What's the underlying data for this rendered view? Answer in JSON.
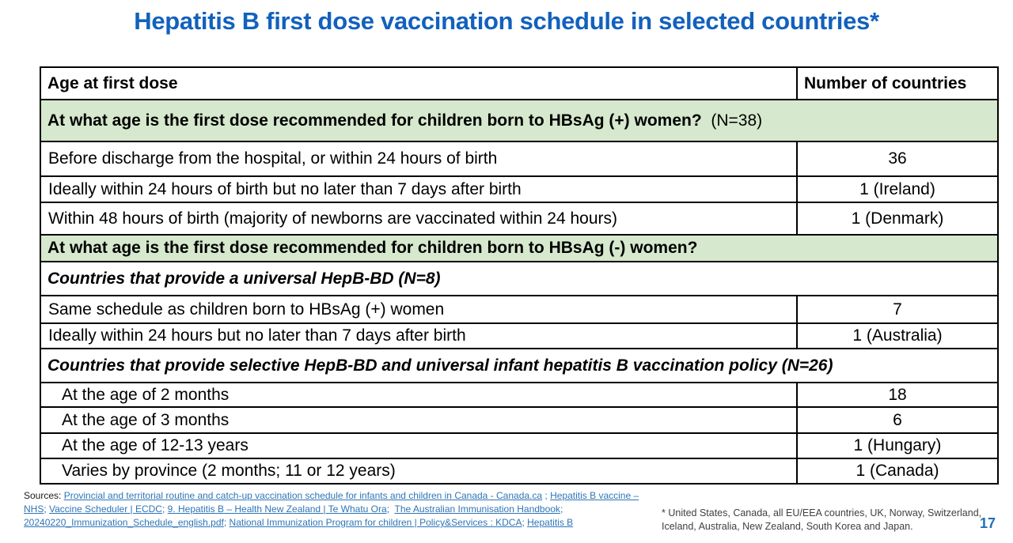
{
  "title": "Hepatitis B first dose vaccination schedule in selected countries*",
  "page_number": "17",
  "colors": {
    "title_blue": "#1261bd",
    "section_green": "#d6e8cd",
    "link_blue": "#2e75b6",
    "footnote_gray": "#404040",
    "page_number_blue": "#2271b8",
    "table_border": "#000000"
  },
  "table": {
    "headers": [
      "Age at first dose",
      "Number of countries"
    ],
    "rows": [
      {
        "type": "section-green",
        "label_bold": "At what age is the first dose recommended for children born to HBsAg (+) women?",
        "label_regular": "  (N=38)"
      },
      {
        "type": "data",
        "indent": false,
        "label": "Before discharge from the hospital, or within 24 hours of birth",
        "value": "36"
      },
      {
        "type": "data",
        "indent": false,
        "label": "Ideally within 24 hours of birth but no later than 7 days after birth",
        "value": "1 (Ireland)"
      },
      {
        "type": "data",
        "indent": false,
        "label": "Within 48 hours of birth (majority of newborns are vaccinated within 24 hours)",
        "value": "1 (Denmark)"
      },
      {
        "type": "section-green",
        "label_bold": "At what age is the first dose recommended for children born to HBsAg (-) women?",
        "label_regular": ""
      },
      {
        "type": "section-italic",
        "label": "Countries that provide a universal HepB-BD (N=8)"
      },
      {
        "type": "data",
        "indent": false,
        "label": "Same schedule as children born to HBsAg (+) women",
        "value": "7"
      },
      {
        "type": "data",
        "indent": false,
        "label": "Ideally within 24 hours but no later than 7 days after birth",
        "value": "1 (Australia)"
      },
      {
        "type": "section-italic",
        "label": "Countries that provide selective HepB-BD and universal infant hepatitis B vaccination policy (N=26)"
      },
      {
        "type": "data",
        "indent": true,
        "label": "At the age of 2 months",
        "value": "18"
      },
      {
        "type": "data",
        "indent": true,
        "label": "At the age of 3 months",
        "value": "6"
      },
      {
        "type": "data",
        "indent": true,
        "label": "At the age of 12-13 years",
        "value": "1 (Hungary)"
      },
      {
        "type": "data",
        "indent": true,
        "label": "Varies by province (2 months; 11 or 12 years)",
        "value": "1 (Canada)"
      }
    ]
  },
  "sources": {
    "prefix": "Sources: ",
    "lines": [
      [
        {
          "text": "Provincial and territorial routine and catch-up vaccination schedule for infants and children in Canada - Canada.ca",
          "link": true
        },
        {
          "text": " ; ",
          "link": false
        },
        {
          "text": "Hepatitis B vaccine –",
          "link": true
        }
      ],
      [
        {
          "text": "NHS",
          "link": true
        },
        {
          "text": "; ",
          "link": false
        },
        {
          "text": "Vaccine Scheduler | ECDC",
          "link": true
        },
        {
          "text": "; ",
          "link": false
        },
        {
          "text": "9. Hepatitis B – Health New Zealand | Te Whatu Ora",
          "link": true
        },
        {
          "text": ";  ",
          "link": false
        },
        {
          "text": "The Australian Immunisation Handbook",
          "link": true
        },
        {
          "text": ";",
          "link": false
        }
      ],
      [
        {
          "text": "20240220_Immunization_Schedule_english.pdf",
          "link": true
        },
        {
          "text": "; ",
          "link": false
        },
        {
          "text": "National Immunization Program for children | Policy&Services : KDCA",
          "link": true
        },
        {
          "text": "; ",
          "link": false
        },
        {
          "text": "Hepatitis B",
          "link": true
        }
      ]
    ]
  },
  "footnote": {
    "line1": "* United States, Canada, all EU/EEA countries, UK, Norway, Switzerland,",
    "line2": "Iceland, Australia, New Zealand, South Korea and Japan."
  }
}
